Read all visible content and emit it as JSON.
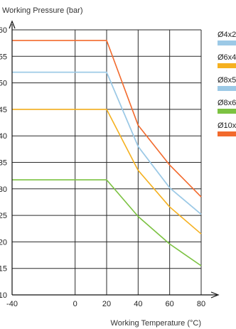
{
  "chart_data": {
    "type": "line",
    "xlabel": "Working Temperature (°C)",
    "ylabel": "Working Pressure (bar)",
    "xlim": [
      -40,
      80
    ],
    "ylim": [
      10,
      60
    ],
    "x_ticks": [
      -40,
      0,
      20,
      40,
      60,
      80
    ],
    "y_ticks": [
      10,
      15,
      20,
      25,
      30,
      35,
      40,
      45,
      50,
      55,
      60
    ],
    "grid": true,
    "legend_position": "right",
    "series": [
      {
        "name": "Ø4x2",
        "color": "#9cc9e6",
        "x": [
          -40,
          20,
          40,
          60,
          80
        ],
        "y": [
          52,
          52,
          38,
          30.2,
          25.2
        ]
      },
      {
        "name": "Ø6x4",
        "color": "#f5b120",
        "x": [
          -40,
          20,
          40,
          60,
          80
        ],
        "y": [
          45,
          45,
          33.5,
          26.6,
          21.5
        ]
      },
      {
        "name": "Ø8x5",
        "color": "#9cc9e6",
        "x": [
          -40,
          20,
          40,
          60,
          80
        ],
        "y": [
          52,
          52,
          38,
          30.2,
          25.2
        ]
      },
      {
        "name": "Ø8x6",
        "color": "#7cc242",
        "x": [
          -40,
          20,
          40,
          60,
          80
        ],
        "y": [
          31.7,
          31.7,
          24.8,
          19.6,
          15.5
        ]
      },
      {
        "name": "Ø10x",
        "color": "#f26a2d",
        "x": [
          -40,
          20,
          40,
          60,
          80
        ],
        "y": [
          58,
          58,
          42,
          34.5,
          28.5
        ]
      }
    ]
  }
}
